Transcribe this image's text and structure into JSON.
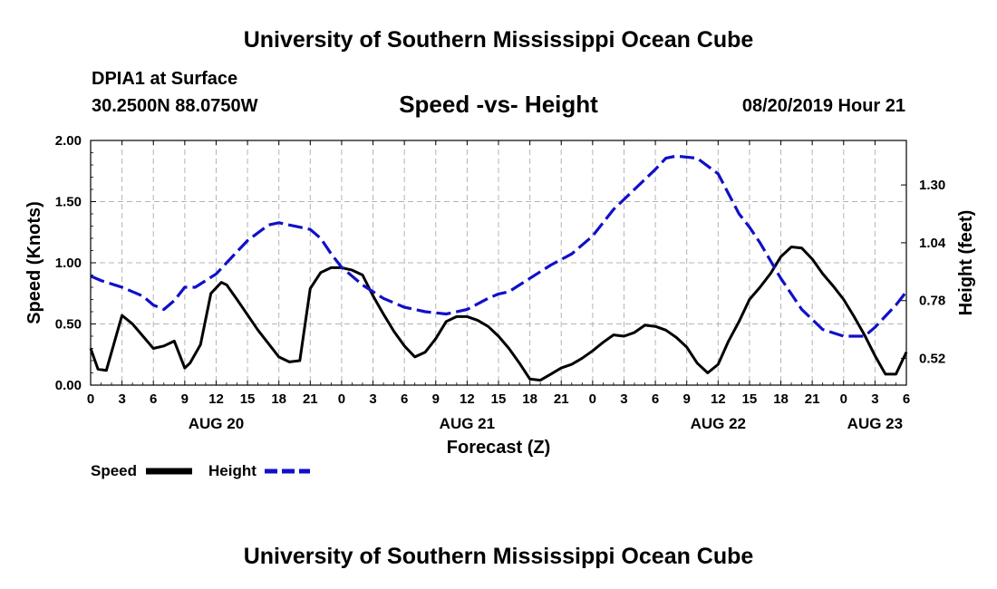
{
  "header": {
    "title_top": "University of Southern Mississippi Ocean Cube",
    "station": "DPIA1 at Surface",
    "location": "30.2500N 88.0750W",
    "chart_title": "Speed -vs- Height",
    "datetime": "08/20/2019 Hour 21",
    "title_bottom": "University of Southern Mississippi Ocean Cube"
  },
  "legend": {
    "speed_label": "Speed",
    "height_label": "Height"
  },
  "colors": {
    "speed": "#000000",
    "height": "#1010c8",
    "grid": "#b4b4b4"
  },
  "chart_data": {
    "type": "line",
    "title": "Speed -vs- Height",
    "xlabel": "Forecast (Z)",
    "ylabel": "Speed (Knots)",
    "y2label": "Height (feet)",
    "x_range_hours": [
      0,
      78
    ],
    "ylim": [
      0,
      2.0
    ],
    "y2lim": [
      0.4,
      1.5
    ],
    "yticks": [
      "0.00",
      "0.50",
      "1.00",
      "1.50",
      "2.00"
    ],
    "y2ticks": [
      "0.52",
      "0.78",
      "1.04",
      "1.30"
    ],
    "xtick_labels": [
      "0",
      "3",
      "6",
      "9",
      "12",
      "15",
      "18",
      "21",
      "0",
      "3",
      "6",
      "9",
      "12",
      "15",
      "18",
      "21",
      "0",
      "3",
      "6",
      "9",
      "12",
      "15",
      "18",
      "21",
      "0",
      "3",
      "6"
    ],
    "day_labels": [
      {
        "label": "AUG 20",
        "hour": 12
      },
      {
        "label": "AUG 21",
        "hour": 36
      },
      {
        "label": "AUG 22",
        "hour": 60
      },
      {
        "label": "AUG 23",
        "hour": 75
      }
    ],
    "grid": true,
    "series": [
      {
        "name": "Speed",
        "axis": "left",
        "hours": [
          0,
          0.7,
          1.5,
          3,
          4,
          6,
          7,
          8,
          9,
          9.5,
          10.5,
          11.5,
          12.5,
          13,
          14,
          16,
          18,
          19,
          20,
          21,
          22,
          23,
          24,
          25,
          26,
          27,
          28,
          29,
          30,
          31,
          32,
          33,
          34,
          35,
          36,
          37,
          38,
          39,
          40,
          41,
          42,
          43,
          44,
          45,
          46,
          47,
          48,
          49,
          50,
          51,
          52,
          53,
          54,
          55,
          56,
          57,
          58,
          59,
          60,
          61,
          62,
          63,
          64,
          65,
          66,
          67,
          68,
          69,
          70,
          71,
          72,
          73,
          74,
          75,
          76,
          77,
          78
        ],
        "values": [
          0.3,
          0.13,
          0.12,
          0.57,
          0.5,
          0.3,
          0.32,
          0.36,
          0.14,
          0.18,
          0.33,
          0.75,
          0.84,
          0.82,
          0.7,
          0.45,
          0.23,
          0.19,
          0.2,
          0.79,
          0.92,
          0.96,
          0.96,
          0.94,
          0.9,
          0.73,
          0.58,
          0.44,
          0.32,
          0.23,
          0.27,
          0.38,
          0.52,
          0.56,
          0.56,
          0.53,
          0.48,
          0.4,
          0.3,
          0.18,
          0.05,
          0.04,
          0.09,
          0.14,
          0.17,
          0.22,
          0.28,
          0.35,
          0.41,
          0.4,
          0.43,
          0.49,
          0.48,
          0.45,
          0.39,
          0.31,
          0.18,
          0.1,
          0.17,
          0.36,
          0.52,
          0.7,
          0.8,
          0.91,
          1.05,
          1.13,
          1.12,
          1.03,
          0.91,
          0.81,
          0.7,
          0.56,
          0.41,
          0.24,
          0.09,
          0.09,
          0.27
        ]
      },
      {
        "name": "Height",
        "axis": "right",
        "hours": [
          0,
          1,
          3,
          5,
          6,
          7,
          8,
          9,
          10,
          12,
          13,
          15,
          17,
          18,
          19,
          20,
          21,
          22,
          23,
          24,
          26,
          28,
          30,
          32,
          34,
          36,
          38,
          39,
          40,
          41,
          42,
          44,
          46,
          48,
          50,
          52,
          54,
          55,
          56,
          58,
          60,
          62,
          63,
          64,
          66,
          68,
          70,
          72,
          74,
          75,
          76,
          77,
          78
        ],
        "values": [
          0.89,
          0.87,
          0.84,
          0.8,
          0.76,
          0.74,
          0.78,
          0.84,
          0.84,
          0.9,
          0.95,
          1.05,
          1.12,
          1.13,
          1.12,
          1.11,
          1.1,
          1.06,
          0.99,
          0.93,
          0.85,
          0.79,
          0.75,
          0.73,
          0.72,
          0.74,
          0.79,
          0.81,
          0.82,
          0.85,
          0.88,
          0.94,
          0.99,
          1.07,
          1.19,
          1.28,
          1.37,
          1.42,
          1.43,
          1.42,
          1.35,
          1.17,
          1.11,
          1.04,
          0.88,
          0.74,
          0.65,
          0.62,
          0.62,
          0.66,
          0.71,
          0.76,
          0.82
        ]
      }
    ]
  }
}
